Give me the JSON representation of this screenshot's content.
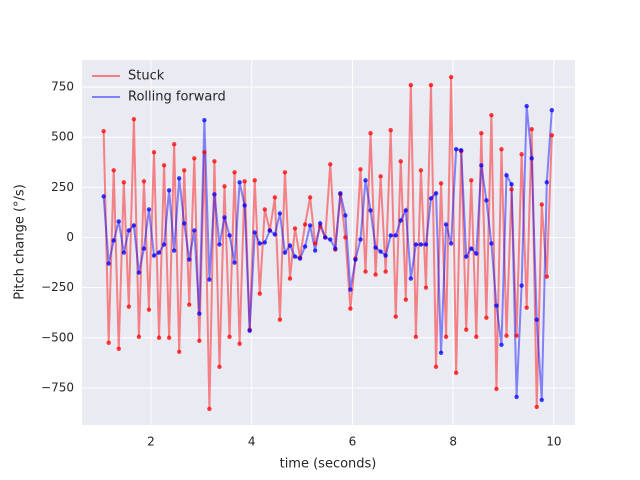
{
  "chart_data": {
    "type": "line",
    "xlabel": "time (seconds)",
    "ylabel": "Pitch change (°/s)",
    "xlim": [
      0.63,
      10.42
    ],
    "ylim": [
      -935,
      885
    ],
    "xticks": [
      2,
      4,
      6,
      8,
      10
    ],
    "yticks": [
      {
        "value": -750,
        "label": "−750"
      },
      {
        "value": -500,
        "label": "−500"
      },
      {
        "value": -250,
        "label": "−250"
      },
      0,
      250,
      500,
      750
    ],
    "grid": true,
    "legend": "upper left",
    "x": [
      1.06,
      1.16,
      1.26,
      1.36,
      1.46,
      1.56,
      1.66,
      1.76,
      1.86,
      1.96,
      2.06,
      2.16,
      2.26,
      2.36,
      2.46,
      2.56,
      2.66,
      2.76,
      2.86,
      2.96,
      3.06,
      3.16,
      3.26,
      3.36,
      3.46,
      3.56,
      3.66,
      3.76,
      3.86,
      3.96,
      4.06,
      4.16,
      4.26,
      4.36,
      4.46,
      4.56,
      4.66,
      4.76,
      4.86,
      4.96,
      5.06,
      5.16,
      5.26,
      5.36,
      5.46,
      5.56,
      5.66,
      5.76,
      5.86,
      5.96,
      6.06,
      6.16,
      6.26,
      6.36,
      6.46,
      6.56,
      6.66,
      6.76,
      6.86,
      6.96,
      7.06,
      7.16,
      7.26,
      7.36,
      7.46,
      7.56,
      7.66,
      7.76,
      7.86,
      7.96,
      8.06,
      8.16,
      8.26,
      8.36,
      8.46,
      8.56,
      8.66,
      8.76,
      8.86,
      8.96,
      9.06,
      9.16,
      9.26,
      9.36,
      9.46,
      9.56,
      9.66,
      9.76,
      9.86,
      9.96
    ],
    "series": [
      {
        "name": "Stuck",
        "color": "#ff0000",
        "values": [
          530,
          -525,
          335,
          -555,
          275,
          -345,
          590,
          -495,
          280,
          -360,
          425,
          -500,
          360,
          -500,
          465,
          -570,
          335,
          -335,
          395,
          -515,
          425,
          -855,
          380,
          -645,
          255,
          -495,
          325,
          -530,
          280,
          -460,
          285,
          -280,
          140,
          35,
          200,
          -410,
          325,
          -205,
          45,
          -100,
          65,
          200,
          -30,
          55,
          0,
          365,
          -60,
          215,
          0,
          -355,
          -105,
          340,
          -170,
          520,
          -185,
          305,
          -170,
          535,
          -395,
          380,
          -310,
          760,
          -495,
          335,
          -250,
          760,
          -645,
          270,
          -495,
          800,
          -675,
          430,
          -460,
          285,
          -495,
          520,
          -400,
          610,
          -755,
          440,
          -490,
          240,
          -490,
          415,
          -350,
          540,
          -845,
          165,
          -195,
          510
        ]
      },
      {
        "name": "Rolling forward",
        "color": "#0000ff",
        "values": [
          205,
          -130,
          -15,
          80,
          -75,
          35,
          60,
          -175,
          -55,
          140,
          -90,
          -75,
          -35,
          235,
          -65,
          295,
          70,
          -110,
          35,
          -380,
          585,
          -210,
          215,
          -35,
          100,
          10,
          -125,
          275,
          160,
          -465,
          25,
          -30,
          -25,
          35,
          15,
          120,
          -75,
          -40,
          -95,
          -105,
          -45,
          60,
          -65,
          70,
          0,
          -10,
          -55,
          220,
          110,
          -260,
          -110,
          -10,
          285,
          135,
          -50,
          -70,
          -90,
          10,
          10,
          85,
          135,
          -205,
          -35,
          -35,
          -35,
          195,
          220,
          -575,
          65,
          -30,
          440,
          435,
          -95,
          -55,
          -80,
          360,
          185,
          -30,
          -340,
          -535,
          310,
          265,
          -795,
          -240,
          655,
          395,
          -410,
          -810,
          275,
          635
        ]
      }
    ]
  }
}
